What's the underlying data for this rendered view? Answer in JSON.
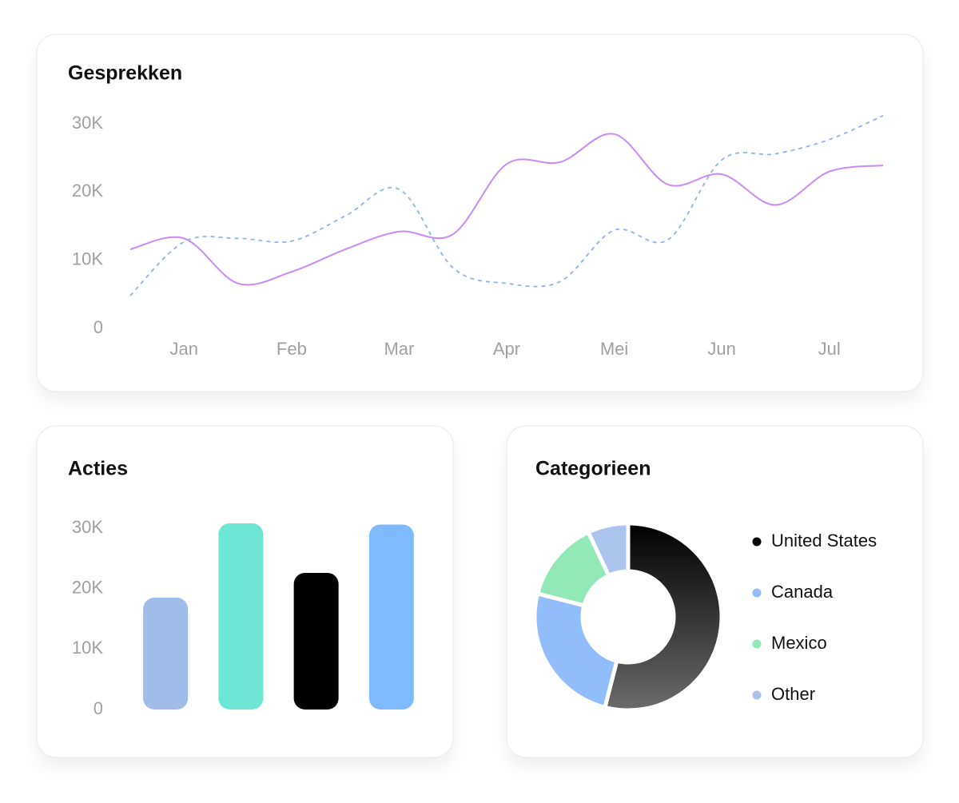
{
  "chart_data": [
    {
      "type": "line",
      "title": "Gesprekken",
      "categories": [
        null,
        "Jan",
        null,
        "Feb",
        null,
        "Mar",
        null,
        "Apr",
        null,
        "Mei",
        null,
        "Jun",
        null,
        "Jul",
        null
      ],
      "series": [
        {
          "color": "#c98af5",
          "style": "solid",
          "values": [
            11600,
            13200,
            6600,
            8300,
            11600,
            14200,
            13800,
            24100,
            24400,
            28500,
            21100,
            22600,
            18100,
            23000,
            23900
          ]
        },
        {
          "color": "#8fb4e8",
          "style": "dashed",
          "values": [
            4800,
            12700,
            13200,
            12800,
            16500,
            20400,
            8900,
            6600,
            6900,
            14400,
            13000,
            24700,
            25600,
            27700,
            31200
          ]
        }
      ],
      "ylim": [
        0,
        30000
      ],
      "yticks": [
        {
          "value": 0,
          "label": "0"
        },
        {
          "value": 10000,
          "label": "10K"
        },
        {
          "value": 20000,
          "label": "20K"
        },
        {
          "value": 30000,
          "label": "30K"
        }
      ]
    },
    {
      "type": "bar",
      "title": "Acties",
      "values": [
        18500,
        30800,
        22600,
        30600
      ],
      "colors": [
        "#a0bce8",
        "#6de6d3",
        "#000000",
        "#7fbbfc"
      ],
      "ylim": [
        0,
        30000
      ],
      "yticks": [
        {
          "value": 0,
          "label": "0"
        },
        {
          "value": 10000,
          "label": "10K"
        },
        {
          "value": 20000,
          "label": "20K"
        },
        {
          "value": 30000,
          "label": "30K"
        }
      ]
    },
    {
      "type": "pie",
      "title": "Categorieen",
      "categories": [
        "United States",
        "Canada",
        "Mexico",
        "Other"
      ],
      "values": [
        54,
        25,
        14,
        7
      ],
      "colors": [
        "#000000",
        "#91bdfa",
        "#93e8b8",
        "#abc4ee"
      ]
    }
  ]
}
